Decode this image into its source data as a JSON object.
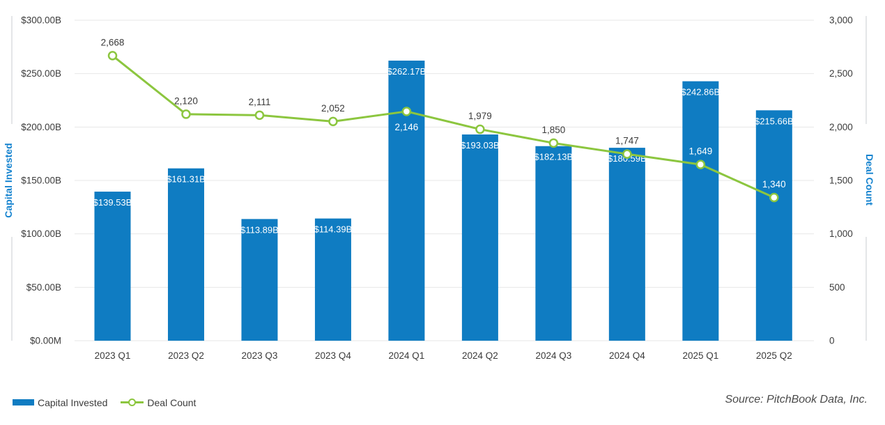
{
  "chart_data": {
    "type": "combo",
    "categories": [
      "2023 Q1",
      "2023 Q2",
      "2023 Q3",
      "2023 Q4",
      "2024 Q1",
      "2024 Q2",
      "2024 Q3",
      "2024 Q4",
      "2025 Q1",
      "2025 Q2"
    ],
    "series": [
      {
        "name": "Capital Invested",
        "type": "bar",
        "axis": "left",
        "unit": "USD billions",
        "values": [
          139.53,
          161.31,
          113.89,
          114.39,
          262.17,
          193.03,
          182.13,
          180.59,
          242.86,
          215.66
        ],
        "labels": [
          "$139.53B",
          "$161.31B",
          "$113.89B",
          "$114.39B",
          "$262.17B",
          "$193.03B",
          "$182.13B",
          "$180.59B",
          "$242.86B",
          "$215.66B"
        ]
      },
      {
        "name": "Deal Count",
        "type": "line",
        "axis": "right",
        "values": [
          2668,
          2120,
          2111,
          2052,
          2146,
          1979,
          1850,
          1747,
          1649,
          1340
        ],
        "labels": [
          "2,668",
          "2,120",
          "2,111",
          "2,052",
          "2,146",
          "1,979",
          "1,850",
          "1,747",
          "1,649",
          "1,340"
        ],
        "label_placement": [
          "above",
          "above",
          "above",
          "above",
          "below",
          "above",
          "above",
          "above",
          "above",
          "above"
        ],
        "label_style": [
          "dark",
          "dark",
          "dark",
          "dark",
          "light",
          "dark",
          "dark",
          "dark",
          "light",
          "light"
        ]
      }
    ],
    "left_axis": {
      "title": "Capital Invested",
      "min": 0,
      "max": 300,
      "ticks": [
        "$0.00M",
        "$50.00B",
        "$100.00B",
        "$150.00B",
        "$200.00B",
        "$250.00B",
        "$300.00B"
      ]
    },
    "right_axis": {
      "title": "Deal Count",
      "min": 0,
      "max": 3000,
      "ticks": [
        "0",
        "500",
        "1,000",
        "1,500",
        "2,000",
        "2,500",
        "3,000"
      ]
    },
    "grid": true,
    "legend_position": "bottom-left"
  },
  "legend": {
    "items": [
      {
        "label": "Capital Invested",
        "marker": "bar-swatch"
      },
      {
        "label": "Deal Count",
        "marker": "line-with-circle"
      }
    ]
  },
  "source": "Source: PitchBook Data, Inc.",
  "colors": {
    "bar": "#0F7CC2",
    "line": "#8CC63F",
    "axis_title": "#1583CF",
    "grid": "#E7E7E7",
    "axis_line": "#C9CDD1",
    "tick_text": "#3B3B3B",
    "label_dark": "#3B3B3B",
    "label_light": "#FFFFFF",
    "source_text": "#4A4A4A"
  }
}
